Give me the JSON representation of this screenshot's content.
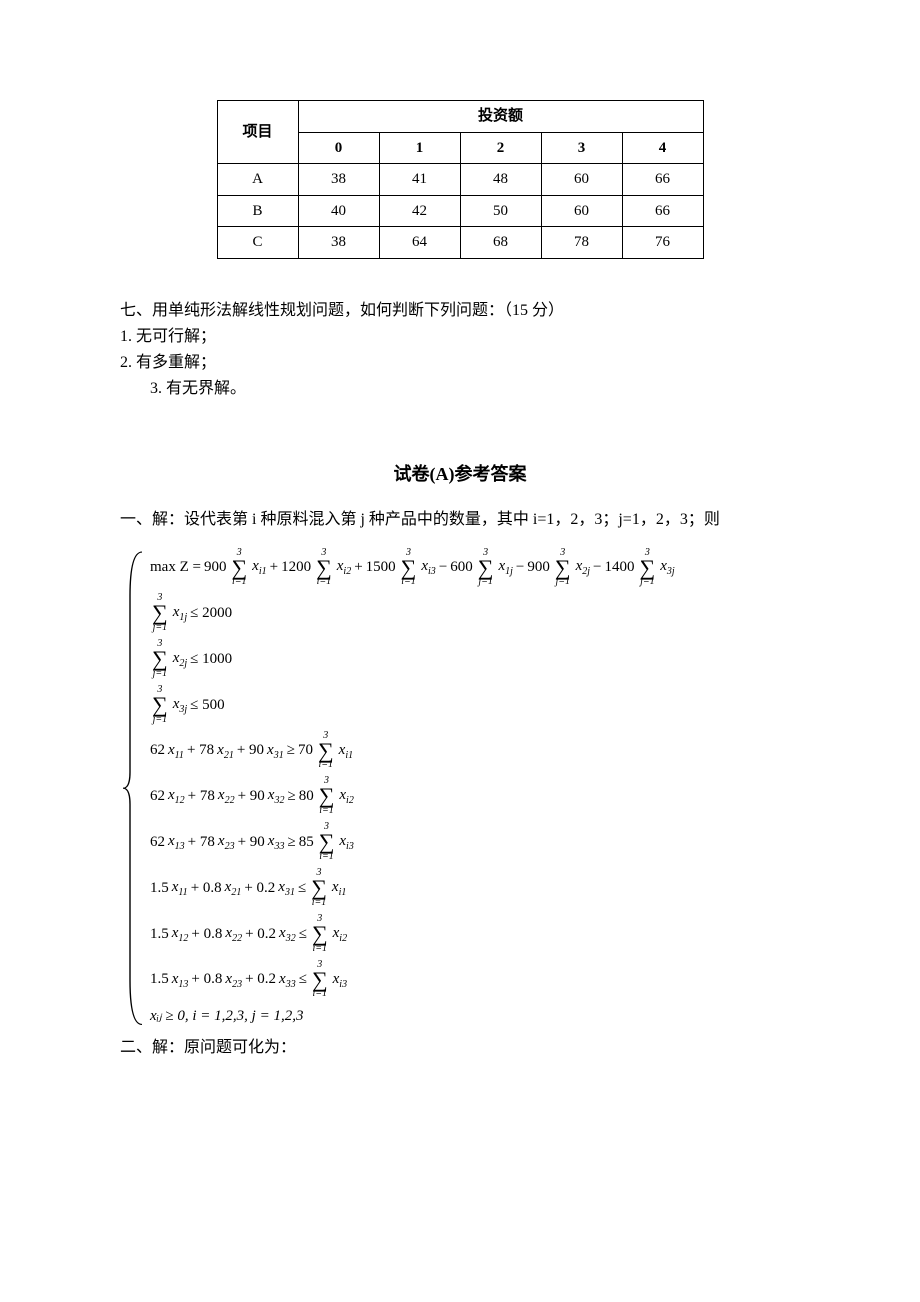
{
  "table": {
    "header_rowspan_label": "项目",
    "header_colspan_label": "投资额",
    "invest_cols": [
      "0",
      "1",
      "2",
      "3",
      "4"
    ],
    "rows": [
      {
        "label": "A",
        "vals": [
          "38",
          "41",
          "48",
          "60",
          "66"
        ]
      },
      {
        "label": "B",
        "vals": [
          "40",
          "42",
          "50",
          "60",
          "66"
        ]
      },
      {
        "label": "C",
        "vals": [
          "38",
          "64",
          "68",
          "78",
          "76"
        ]
      }
    ]
  },
  "q7": {
    "title": "七、用单纯形法解线性规划问题，如何判断下列问题：（15 分）",
    "item1": "1.  无可行解；",
    "item2": "2.  有多重解；",
    "item3": "3. 有无界解。"
  },
  "answers_title": "试卷(A)参考答案",
  "ans1_intro": "一、解：设代表第 i 种原料混入第 j 种产品中的数量，其中 i=1，2，3；j=1，2，3；则",
  "obj": {
    "prefix": "max Z = ",
    "terms": [
      {
        "coef": "900",
        "sum_ub": "3",
        "sum_lb": "i=1",
        "var": "x",
        "sub": "i1",
        "op": "+"
      },
      {
        "coef": "1200",
        "sum_ub": "3",
        "sum_lb": "i=1",
        "var": "x",
        "sub": "i2",
        "op": "+"
      },
      {
        "coef": "1500",
        "sum_ub": "3",
        "sum_lb": "i=1",
        "var": "x",
        "sub": "i3",
        "op": "−"
      },
      {
        "coef": "600",
        "sum_ub": "3",
        "sum_lb": "j=1",
        "var": "x",
        "sub": "1j",
        "op": "−"
      },
      {
        "coef": "900",
        "sum_ub": "3",
        "sum_lb": "j=1",
        "var": "x",
        "sub": "2j",
        "op": "−"
      },
      {
        "coef": "1400",
        "sum_ub": "3",
        "sum_lb": "j=1",
        "var": "x",
        "sub": "3j",
        "op": ""
      }
    ]
  },
  "constraints": [
    {
      "type": "sum",
      "sum_ub": "3",
      "sum_lb": "j=1",
      "var": "x",
      "sub": "1j",
      "rel": "≤",
      "rhs": "2000"
    },
    {
      "type": "sum",
      "sum_ub": "3",
      "sum_lb": "j=1",
      "var": "x",
      "sub": "2j",
      "rel": "≤",
      "rhs": "1000"
    },
    {
      "type": "sum",
      "sum_ub": "3",
      "sum_lb": "j=1",
      "var": "x",
      "sub": "3j",
      "rel": "≤",
      "rhs": "500"
    },
    {
      "type": "lin",
      "c1": "62",
      "s1": "11",
      "c2": "78",
      "s2": "21",
      "c3": "90",
      "s3": "31",
      "rel": "≥",
      "rcoef": "70",
      "sum_ub": "3",
      "sum_lb": "i=1",
      "rsub": "i1"
    },
    {
      "type": "lin",
      "c1": "62",
      "s1": "12",
      "c2": "78",
      "s2": "22",
      "c3": "90",
      "s3": "32",
      "rel": "≥",
      "rcoef": "80",
      "sum_ub": "3",
      "sum_lb": "i=1",
      "rsub": "i2"
    },
    {
      "type": "lin",
      "c1": "62",
      "s1": "13",
      "c2": "78",
      "s2": "23",
      "c3": "90",
      "s3": "33",
      "rel": "≥",
      "rcoef": "85",
      "sum_ub": "3",
      "sum_lb": "i=1",
      "rsub": "i3"
    },
    {
      "type": "lin",
      "c1": "1.5",
      "s1": "11",
      "c2": "0.8",
      "s2": "21",
      "c3": "0.2",
      "s3": "31",
      "rel": "≤",
      "rcoef": "",
      "sum_ub": "3",
      "sum_lb": "i=1",
      "rsub": "i1"
    },
    {
      "type": "lin",
      "c1": "1.5",
      "s1": "12",
      "c2": "0.8",
      "s2": "22",
      "c3": "0.2",
      "s3": "32",
      "rel": "≤",
      "rcoef": "",
      "sum_ub": "3",
      "sum_lb": "i=1",
      "rsub": "i2"
    },
    {
      "type": "lin",
      "c1": "1.5",
      "s1": "13",
      "c2": "0.8",
      "s2": "23",
      "c3": "0.2",
      "s3": "33",
      "rel": "≤",
      "rcoef": "",
      "sum_ub": "3",
      "sum_lb": "i=1",
      "rsub": "i3"
    },
    {
      "type": "nonneg",
      "text": "xᵢⱼ ≥ 0, i = 1,2,3,  j = 1,2,3"
    }
  ],
  "ans2_intro": "二、解：原问题可化为："
}
